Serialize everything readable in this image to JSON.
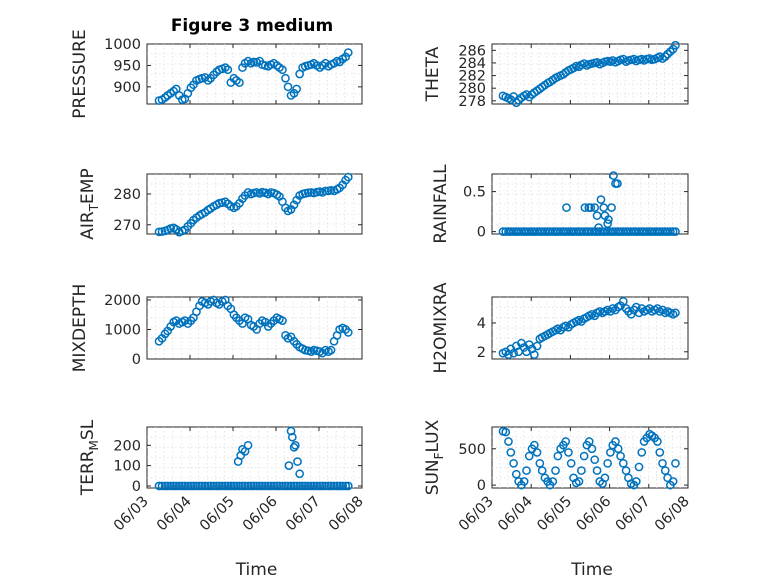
{
  "figure": {
    "title": "Figure 3 medium",
    "marker_color": "#0072BD",
    "axis_color": "#262626",
    "grid_color": "#dfdfdf"
  },
  "chart_data": [
    {
      "id": "pressure",
      "type": "scatter",
      "ylabel": "PRESSURE",
      "xlabel": "",
      "xlim": [
        0,
        5
      ],
      "ylim": [
        860,
        1000
      ],
      "yticks": [
        900,
        950,
        1000
      ],
      "xticks": [],
      "grid": true,
      "x": [
        0.28,
        0.35,
        0.42,
        0.48,
        0.55,
        0.62,
        0.68,
        0.75,
        0.82,
        0.88,
        0.95,
        1.02,
        1.08,
        1.15,
        1.22,
        1.28,
        1.35,
        1.42,
        1.48,
        1.55,
        1.62,
        1.68,
        1.75,
        1.82,
        1.88,
        1.95,
        2.02,
        2.08,
        2.15,
        2.22,
        2.28,
        2.35,
        2.42,
        2.48,
        2.55,
        2.62,
        2.68,
        2.75,
        2.82,
        2.88,
        2.95,
        3.02,
        3.08,
        3.15,
        3.22,
        3.28,
        3.35,
        3.42,
        3.48,
        3.55,
        3.62,
        3.68,
        3.75,
        3.82,
        3.88,
        3.95,
        4.02,
        4.08,
        4.15,
        4.22,
        4.28,
        4.35,
        4.42,
        4.48,
        4.55,
        4.62,
        4.68
      ],
      "y": [
        868,
        870,
        875,
        880,
        885,
        890,
        895,
        880,
        870,
        872,
        885,
        898,
        905,
        915,
        918,
        920,
        922,
        915,
        920,
        928,
        935,
        940,
        942,
        945,
        940,
        910,
        920,
        915,
        910,
        945,
        955,
        960,
        955,
        958,
        957,
        960,
        952,
        950,
        948,
        952,
        955,
        950,
        945,
        940,
        920,
        900,
        880,
        885,
        895,
        930,
        945,
        948,
        950,
        952,
        955,
        950,
        945,
        950,
        955,
        948,
        952,
        955,
        960,
        958,
        965,
        970,
        980
      ]
    },
    {
      "id": "theta",
      "type": "scatter",
      "ylabel": "THETA",
      "xlabel": "",
      "xlim": [
        0,
        5
      ],
      "ylim": [
        277.5,
        287
      ],
      "yticks": [
        278,
        280,
        282,
        284,
        286
      ],
      "xticks": [],
      "grid": true,
      "x": [
        0.28,
        0.35,
        0.42,
        0.48,
        0.55,
        0.62,
        0.68,
        0.75,
        0.82,
        0.88,
        0.95,
        1.02,
        1.08,
        1.15,
        1.22,
        1.28,
        1.35,
        1.42,
        1.48,
        1.55,
        1.62,
        1.68,
        1.75,
        1.82,
        1.88,
        1.95,
        2.02,
        2.08,
        2.15,
        2.22,
        2.28,
        2.35,
        2.42,
        2.48,
        2.55,
        2.62,
        2.68,
        2.75,
        2.82,
        2.88,
        2.95,
        3.02,
        3.08,
        3.15,
        3.22,
        3.28,
        3.35,
        3.42,
        3.48,
        3.55,
        3.62,
        3.68,
        3.75,
        3.82,
        3.88,
        3.95,
        4.02,
        4.08,
        4.15,
        4.22,
        4.28,
        4.35,
        4.42,
        4.48,
        4.55,
        4.62,
        4.68
      ],
      "y": [
        278.8,
        278.6,
        278.4,
        278.2,
        278.7,
        277.7,
        278.1,
        278.5,
        278.8,
        279.0,
        278.6,
        279.0,
        279.3,
        279.6,
        279.9,
        280.2,
        280.5,
        280.8,
        281.0,
        281.3,
        281.6,
        281.8,
        282.0,
        282.2,
        282.5,
        282.8,
        283.0,
        283.2,
        283.5,
        283.4,
        283.7,
        283.9,
        283.6,
        283.8,
        283.9,
        284.0,
        284.1,
        283.8,
        284.0,
        284.2,
        284.3,
        284.2,
        284.4,
        284.1,
        284.3,
        284.5,
        284.6,
        284.2,
        284.4,
        284.5,
        284.6,
        284.3,
        284.5,
        284.6,
        284.4,
        284.6,
        284.7,
        284.5,
        284.6,
        284.8,
        285.0,
        284.7,
        285.0,
        285.4,
        285.8,
        286.2,
        286.8
      ]
    },
    {
      "id": "air-temp",
      "type": "scatter",
      "ylabel": "AIR_TEMP",
      "xlabel": "",
      "xlim": [
        0,
        5
      ],
      "ylim": [
        267,
        286.5
      ],
      "yticks": [
        270,
        280
      ],
      "xticks": [],
      "grid": true,
      "x": [
        0.28,
        0.35,
        0.42,
        0.48,
        0.55,
        0.62,
        0.68,
        0.75,
        0.82,
        0.88,
        0.95,
        1.02,
        1.08,
        1.15,
        1.22,
        1.28,
        1.35,
        1.42,
        1.48,
        1.55,
        1.62,
        1.68,
        1.75,
        1.82,
        1.88,
        1.95,
        2.02,
        2.08,
        2.15,
        2.22,
        2.28,
        2.35,
        2.42,
        2.48,
        2.55,
        2.62,
        2.68,
        2.75,
        2.82,
        2.88,
        2.95,
        3.02,
        3.08,
        3.15,
        3.22,
        3.28,
        3.35,
        3.42,
        3.48,
        3.55,
        3.62,
        3.68,
        3.75,
        3.82,
        3.88,
        3.95,
        4.02,
        4.08,
        4.15,
        4.22,
        4.28,
        4.35,
        4.42,
        4.48,
        4.55,
        4.62,
        4.68
      ],
      "y": [
        267.7,
        267.8,
        268.0,
        268.3,
        268.8,
        269.0,
        268.5,
        267.6,
        268.0,
        268.4,
        269.5,
        270.5,
        271.5,
        272.3,
        273.0,
        273.5,
        274.0,
        274.8,
        275.3,
        276.0,
        276.5,
        277.0,
        277.2,
        277.5,
        276.8,
        276.0,
        275.5,
        276.0,
        277.0,
        278.5,
        279.5,
        280.5,
        280.0,
        280.3,
        280.5,
        280.2,
        280.6,
        280.4,
        280.0,
        280.5,
        280.3,
        279.8,
        279.2,
        277.5,
        275.5,
        274.5,
        275.0,
        276.5,
        278.0,
        279.5,
        280.0,
        280.2,
        280.4,
        280.5,
        280.3,
        280.6,
        280.8,
        280.5,
        281.0,
        281.0,
        281.2,
        281.0,
        281.5,
        282.0,
        283.0,
        284.5,
        285.5
      ]
    },
    {
      "id": "rainfall",
      "type": "scatter",
      "ylabel": "RAINFALL",
      "xlabel": "",
      "xlim": [
        0,
        5
      ],
      "ylim": [
        -0.03,
        0.72
      ],
      "yticks": [
        0,
        0.5
      ],
      "xticks": [],
      "grid": true,
      "x": [
        0.28,
        0.35,
        0.42,
        0.48,
        0.55,
        0.62,
        0.68,
        0.75,
        0.82,
        0.88,
        0.95,
        1.02,
        1.08,
        1.15,
        1.22,
        1.28,
        1.35,
        1.42,
        1.48,
        1.55,
        1.62,
        1.68,
        1.75,
        1.82,
        1.88,
        1.95,
        2.02,
        2.08,
        2.15,
        2.22,
        2.28,
        2.35,
        2.42,
        2.48,
        2.55,
        2.62,
        2.68,
        2.75,
        2.82,
        2.88,
        2.95,
        3.02,
        3.08,
        3.15,
        3.22,
        3.28,
        3.35,
        3.42,
        3.48,
        3.55,
        3.62,
        3.68,
        3.75,
        3.82,
        3.88,
        3.95,
        4.02,
        4.08,
        4.15,
        4.22,
        4.28,
        4.35,
        4.42,
        4.48,
        4.55,
        4.62,
        4.68,
        1.9,
        2.37,
        2.47,
        2.52,
        2.62,
        2.68,
        2.78,
        2.85,
        2.88,
        2.95,
        3.05,
        3.1,
        3.15,
        3.2,
        2.72,
        2.97
      ],
      "y": [
        0,
        0,
        0,
        0,
        0,
        0,
        0,
        0,
        0,
        0,
        0,
        0,
        0,
        0,
        0,
        0,
        0,
        0,
        0,
        0,
        0,
        0,
        0,
        0,
        0,
        0,
        0,
        0,
        0,
        0,
        0,
        0,
        0,
        0,
        0,
        0,
        0,
        0,
        0,
        0,
        0,
        0,
        0,
        0,
        0,
        0,
        0,
        0,
        0,
        0,
        0,
        0,
        0,
        0,
        0,
        0,
        0,
        0,
        0,
        0,
        0,
        0,
        0,
        0,
        0,
        0,
        0,
        0.3,
        0.3,
        0.3,
        0.3,
        0.3,
        0.2,
        0.4,
        0.3,
        0.2,
        0.1,
        0.3,
        0.7,
        0.6,
        0.6,
        0.05,
        0.15
      ]
    },
    {
      "id": "mixdepth",
      "type": "scatter",
      "ylabel": "MIXDEPTH",
      "xlabel": "",
      "xlim": [
        0,
        5
      ],
      "ylim": [
        0,
        2100
      ],
      "yticks": [
        0,
        1000,
        2000
      ],
      "xticks": [],
      "grid": true,
      "x": [
        0.28,
        0.35,
        0.42,
        0.48,
        0.55,
        0.62,
        0.68,
        0.75,
        0.82,
        0.88,
        0.95,
        1.02,
        1.08,
        1.15,
        1.22,
        1.28,
        1.35,
        1.42,
        1.48,
        1.55,
        1.62,
        1.68,
        1.75,
        1.82,
        1.88,
        1.95,
        2.02,
        2.08,
        2.15,
        2.22,
        2.28,
        2.35,
        2.42,
        2.48,
        2.55,
        2.62,
        2.68,
        2.75,
        2.82,
        2.88,
        2.95,
        3.02,
        3.08,
        3.15,
        3.22,
        3.28,
        3.35,
        3.42,
        3.48,
        3.55,
        3.62,
        3.68,
        3.75,
        3.82,
        3.88,
        3.95,
        4.02,
        4.08,
        4.15,
        4.22,
        4.28,
        4.35,
        4.42,
        4.48,
        4.55,
        4.62,
        4.68
      ],
      "y": [
        600,
        700,
        850,
        950,
        1100,
        1250,
        1300,
        1200,
        1250,
        1300,
        1200,
        1300,
        1400,
        1600,
        1800,
        1950,
        1900,
        1850,
        1950,
        2000,
        1900,
        1850,
        1950,
        2000,
        1800,
        1700,
        1500,
        1400,
        1300,
        1200,
        1400,
        1350,
        1150,
        1100,
        1000,
        1200,
        1300,
        1250,
        1100,
        1200,
        1300,
        1400,
        1350,
        1300,
        800,
        700,
        750,
        600,
        500,
        400,
        350,
        300,
        280,
        250,
        300,
        280,
        250,
        200,
        300,
        250,
        300,
        600,
        800,
        1000,
        1050,
        1000,
        900
      ]
    },
    {
      "id": "h2omixra",
      "type": "scatter",
      "ylabel": "H2OMIXRA",
      "xlabel": "",
      "xlim": [
        0,
        5
      ],
      "ylim": [
        1.5,
        5.8
      ],
      "yticks": [
        2,
        4
      ],
      "xticks": [],
      "grid": true,
      "x": [
        0.28,
        0.35,
        0.42,
        0.48,
        0.55,
        0.62,
        0.68,
        0.75,
        0.82,
        0.88,
        0.95,
        1.02,
        1.08,
        1.15,
        1.22,
        1.28,
        1.35,
        1.42,
        1.48,
        1.55,
        1.62,
        1.68,
        1.75,
        1.82,
        1.88,
        1.95,
        2.02,
        2.08,
        2.15,
        2.22,
        2.28,
        2.35,
        2.42,
        2.48,
        2.55,
        2.62,
        2.68,
        2.75,
        2.82,
        2.88,
        2.95,
        3.02,
        3.08,
        3.15,
        3.22,
        3.28,
        3.35,
        3.42,
        3.48,
        3.55,
        3.62,
        3.68,
        3.75,
        3.82,
        3.88,
        3.95,
        4.02,
        4.08,
        4.15,
        4.22,
        4.28,
        4.35,
        4.42,
        4.48,
        4.55,
        4.62,
        4.68
      ],
      "y": [
        1.9,
        2.0,
        1.8,
        2.2,
        1.9,
        2.4,
        2.0,
        2.6,
        2.3,
        2.0,
        2.5,
        2.2,
        1.8,
        2.4,
        2.9,
        3.0,
        3.1,
        3.2,
        3.3,
        3.4,
        3.5,
        3.6,
        3.5,
        3.7,
        3.8,
        3.7,
        3.9,
        4.0,
        4.1,
        4.2,
        4.1,
        4.3,
        4.4,
        4.5,
        4.6,
        4.5,
        4.7,
        4.8,
        4.7,
        4.8,
        4.9,
        4.8,
        5.0,
        4.9,
        5.1,
        5.2,
        5.5,
        5.0,
        4.8,
        4.6,
        4.9,
        5.1,
        4.7,
        5.0,
        4.8,
        4.9,
        5.0,
        4.8,
        4.9,
        5.0,
        4.8,
        4.9,
        4.7,
        4.8,
        4.7,
        4.6,
        4.7
      ]
    },
    {
      "id": "terr-msl",
      "type": "scatter",
      "ylabel": "TERR_MSL",
      "xlabel": "Time",
      "xlim": [
        0,
        5
      ],
      "ylim": [
        -10,
        290
      ],
      "yticks": [
        0,
        100,
        200
      ],
      "xticks": [
        0,
        1,
        2,
        3,
        4,
        5
      ],
      "xticklabels": [
        "06/03",
        "06/04",
        "06/05",
        "06/06",
        "06/07",
        "06/08"
      ],
      "grid": true,
      "x": [
        0.28,
        0.35,
        0.42,
        0.48,
        0.55,
        0.62,
        0.68,
        0.75,
        0.82,
        0.88,
        0.95,
        1.02,
        1.08,
        1.15,
        1.22,
        1.28,
        1.35,
        1.42,
        1.48,
        1.55,
        1.62,
        1.68,
        1.75,
        1.82,
        1.88,
        1.95,
        2.02,
        2.08,
        2.15,
        2.22,
        2.28,
        2.35,
        2.42,
        2.48,
        2.55,
        2.62,
        2.68,
        2.75,
        2.82,
        2.88,
        2.95,
        3.02,
        3.08,
        3.15,
        3.22,
        3.28,
        3.35,
        3.42,
        3.48,
        3.55,
        3.62,
        3.68,
        3.75,
        3.82,
        3.88,
        3.95,
        4.02,
        4.08,
        4.15,
        4.22,
        4.28,
        4.35,
        4.42,
        4.48,
        4.55,
        4.62,
        4.68,
        2.12,
        2.18,
        2.22,
        2.28,
        2.35,
        3.3,
        3.35,
        3.38,
        3.42,
        3.45,
        3.5,
        3.55
      ],
      "y": [
        0,
        0,
        0,
        0,
        0,
        0,
        0,
        0,
        0,
        0,
        0,
        0,
        0,
        0,
        0,
        0,
        0,
        0,
        0,
        0,
        0,
        0,
        0,
        0,
        0,
        0,
        0,
        0,
        0,
        0,
        0,
        0,
        0,
        0,
        0,
        0,
        0,
        0,
        0,
        0,
        0,
        0,
        0,
        0,
        0,
        0,
        0,
        0,
        0,
        0,
        0,
        0,
        0,
        0,
        0,
        0,
        0,
        0,
        0,
        0,
        0,
        0,
        0,
        0,
        0,
        0,
        0,
        120,
        150,
        180,
        170,
        200,
        100,
        270,
        240,
        190,
        200,
        120,
        60
      ]
    },
    {
      "id": "sun-flux",
      "type": "scatter",
      "ylabel": "SUN_FLUX",
      "xlabel": "Time",
      "xlim": [
        0,
        5
      ],
      "ylim": [
        -40,
        800
      ],
      "yticks": [
        0,
        500
      ],
      "xticks": [
        0,
        1,
        2,
        3,
        4,
        5
      ],
      "xticklabels": [
        "06/03",
        "06/04",
        "06/05",
        "06/06",
        "06/07",
        "06/08"
      ],
      "grid": true,
      "x": [
        0.28,
        0.35,
        0.42,
        0.48,
        0.55,
        0.62,
        0.68,
        0.75,
        0.82,
        0.88,
        0.95,
        1.02,
        1.08,
        1.15,
        1.22,
        1.28,
        1.35,
        1.42,
        1.48,
        1.55,
        1.62,
        1.68,
        1.75,
        1.82,
        1.88,
        1.95,
        2.02,
        2.08,
        2.15,
        2.22,
        2.28,
        2.35,
        2.42,
        2.48,
        2.55,
        2.62,
        2.68,
        2.75,
        2.82,
        2.88,
        2.95,
        3.02,
        3.08,
        3.15,
        3.22,
        3.28,
        3.35,
        3.42,
        3.48,
        3.55,
        3.62,
        3.68,
        3.75,
        3.82,
        3.88,
        3.95,
        4.02,
        4.08,
        4.15,
        4.22,
        4.28,
        4.35,
        4.42,
        4.48,
        4.55,
        4.62,
        4.68
      ],
      "y": [
        740,
        730,
        600,
        450,
        300,
        150,
        50,
        0,
        50,
        200,
        400,
        500,
        550,
        450,
        300,
        200,
        100,
        50,
        0,
        50,
        200,
        400,
        500,
        550,
        600,
        450,
        300,
        100,
        30,
        50,
        200,
        400,
        550,
        600,
        500,
        350,
        200,
        50,
        20,
        100,
        300,
        450,
        550,
        600,
        500,
        400,
        300,
        200,
        100,
        20,
        0,
        50,
        250,
        450,
        600,
        650,
        700,
        680,
        650,
        600,
        450,
        300,
        200,
        100,
        0,
        50,
        300
      ]
    }
  ]
}
